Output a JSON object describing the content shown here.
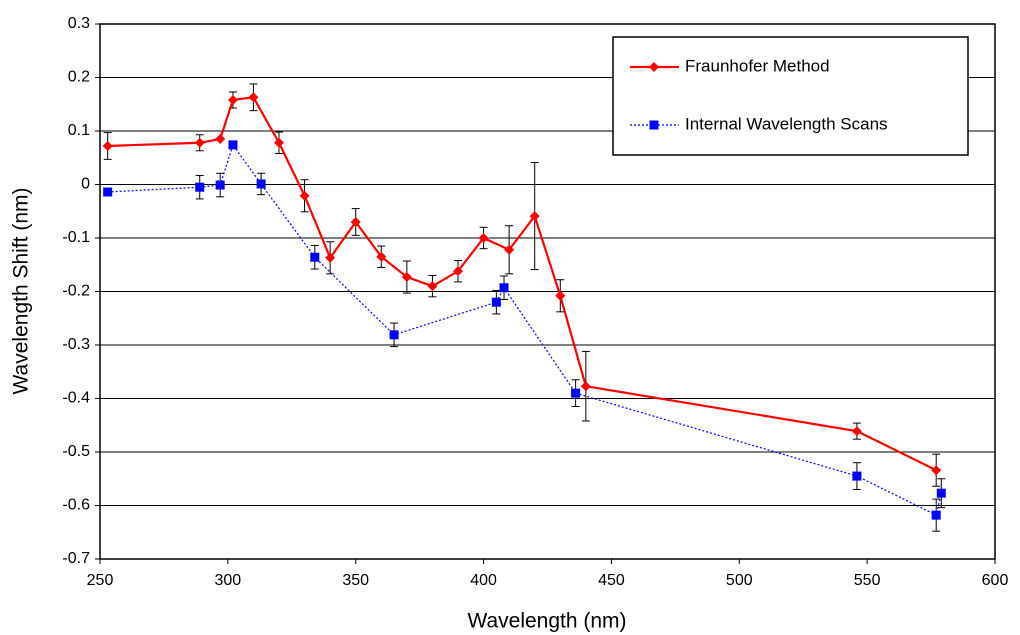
{
  "chart_data": {
    "type": "line",
    "x_label": "Wavelength (nm)",
    "y_label": "Wavelength Shift (nm)",
    "xlim": [
      250,
      600
    ],
    "xticks": [
      250,
      300,
      350,
      400,
      450,
      500,
      550,
      600
    ],
    "ylim": [
      -0.7,
      0.3
    ],
    "yticks": [
      -0.7,
      -0.6,
      -0.5,
      -0.4,
      -0.3,
      -0.2,
      -0.1,
      0,
      0.1,
      0.2,
      0.3
    ],
    "grid": true,
    "legend": "upper right",
    "series": [
      {
        "name": "Fraunhofer Method",
        "color": "#ff0000",
        "marker": "diamond",
        "line_style": "solid",
        "x": [
          253,
          289,
          297,
          302,
          310,
          320,
          330,
          340,
          350,
          360,
          370,
          380,
          390,
          400,
          410,
          420,
          430,
          440,
          546,
          577
        ],
        "values": [
          0.072,
          0.078,
          0.085,
          0.158,
          0.163,
          0.078,
          -0.021,
          -0.137,
          -0.07,
          -0.135,
          -0.173,
          -0.19,
          -0.162,
          -0.1,
          -0.122,
          -0.059,
          -0.208,
          -0.377,
          -0.461,
          -0.534
        ],
        "errors": [
          0.025,
          0.015,
          null,
          0.015,
          0.025,
          0.02,
          0.03,
          0.03,
          0.025,
          0.02,
          0.03,
          0.02,
          0.02,
          0.02,
          0.045,
          0.1,
          0.03,
          0.065,
          0.015,
          0.03
        ]
      },
      {
        "name": "Internal Wavelength Scans",
        "color": "#0000ff",
        "marker": "square",
        "line_style": "dotted",
        "x": [
          253,
          289,
          297,
          302,
          313,
          334,
          365,
          405,
          408,
          436,
          546,
          577,
          579
        ],
        "values": [
          -0.014,
          -0.005,
          -0.001,
          0.074,
          0.001,
          -0.136,
          -0.281,
          -0.22,
          -0.193,
          -0.39,
          -0.545,
          -0.618,
          -0.577
        ],
        "errors": [
          null,
          0.022,
          0.022,
          null,
          0.02,
          0.022,
          0.022,
          0.022,
          0.022,
          0.025,
          0.025,
          0.03,
          0.027
        ]
      }
    ]
  }
}
